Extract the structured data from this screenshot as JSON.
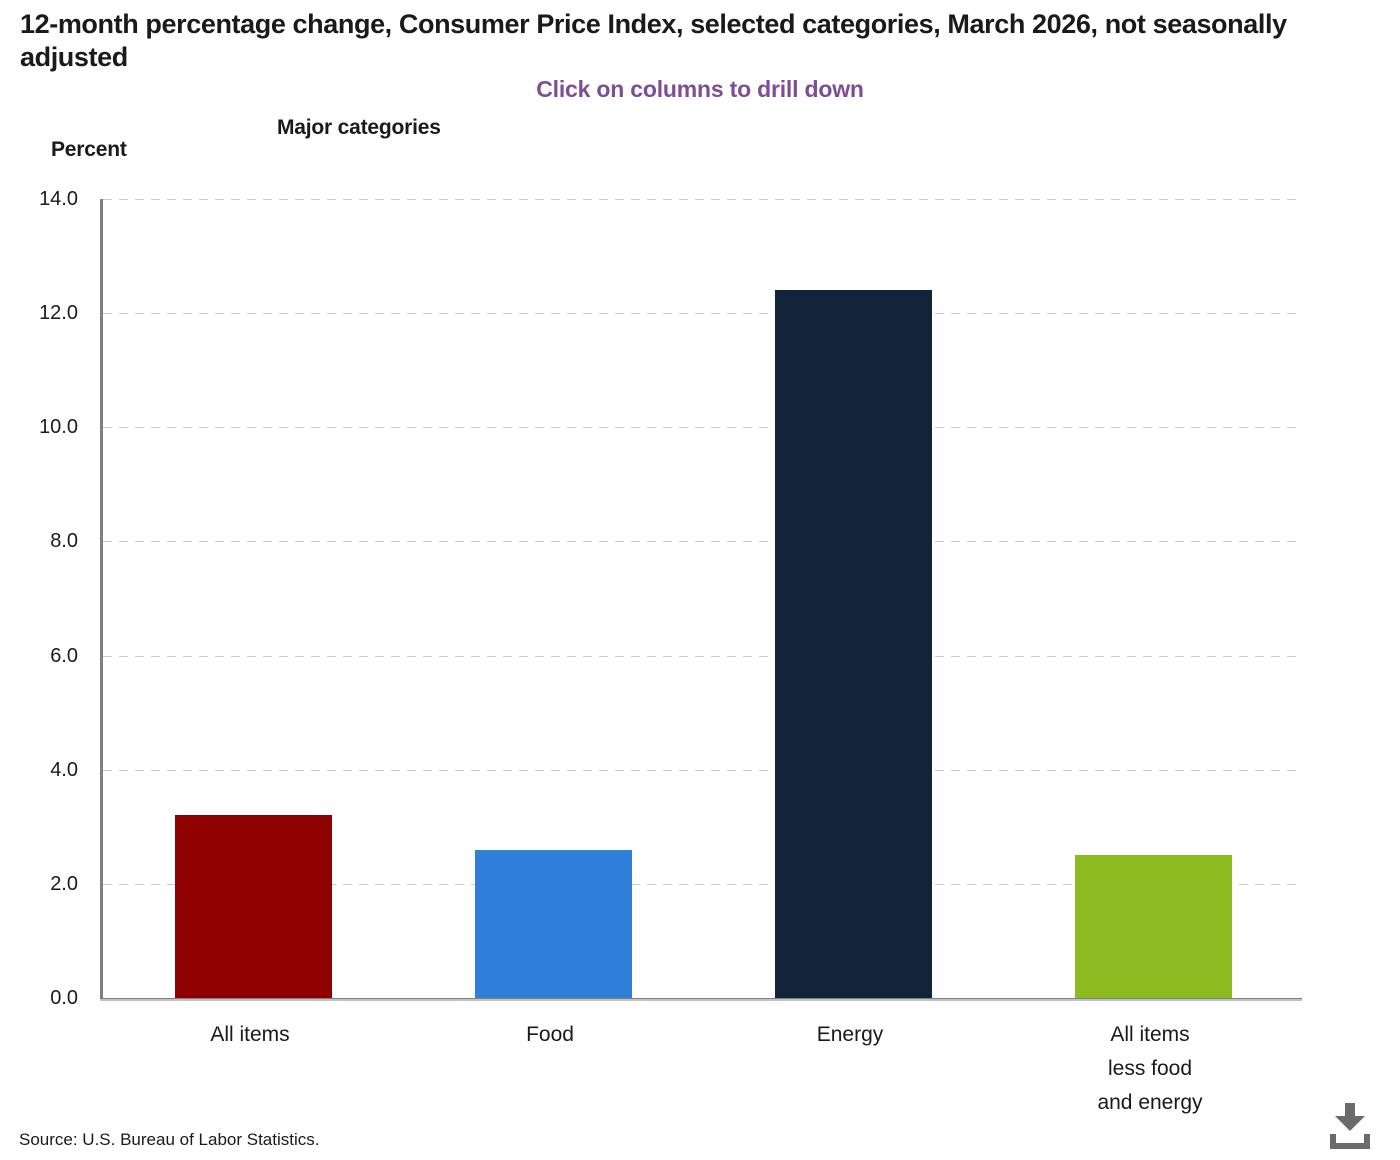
{
  "header": {
    "title": "12-month percentage change, Consumer Price Index, selected categories, March 2026, not seasonally adjusted",
    "subtitle": "Click on columns to drill down",
    "group_label": "Major categories",
    "unit_label": "Percent"
  },
  "chart_data": {
    "type": "bar",
    "title": "12-month percentage change, Consumer Price Index, selected categories, March 2026, not seasonally adjusted",
    "subtitle": "Click on columns to drill down",
    "categories": [
      "All items",
      "Food",
      "Energy",
      "All items\nless food\nand energy"
    ],
    "values": [
      3.2,
      2.6,
      12.4,
      2.5
    ],
    "bar_colors": [
      "#8F0000",
      "#2F7ED8",
      "#12243A",
      "#8BBB21"
    ],
    "xlabel": "Major categories",
    "ylabel": "Percent",
    "ylim": [
      0,
      14
    ],
    "ytick_step": 2,
    "ytick_labels": [
      "0.0",
      "2.0",
      "4.0",
      "6.0",
      "8.0",
      "10.0",
      "12.0",
      "14.0"
    ],
    "grid": "horizontal-dashed",
    "legend": "none"
  },
  "colors": {
    "subtitle_purple": "#7D4E93",
    "axis_gray": "#7F7F7F",
    "gridline_gray": "#CCCCCC",
    "icon_gray": "#6B6B6B"
  },
  "footer": {
    "source": "Source: U.S. Bureau of Labor Statistics."
  },
  "icons": {
    "download": "download-icon"
  }
}
